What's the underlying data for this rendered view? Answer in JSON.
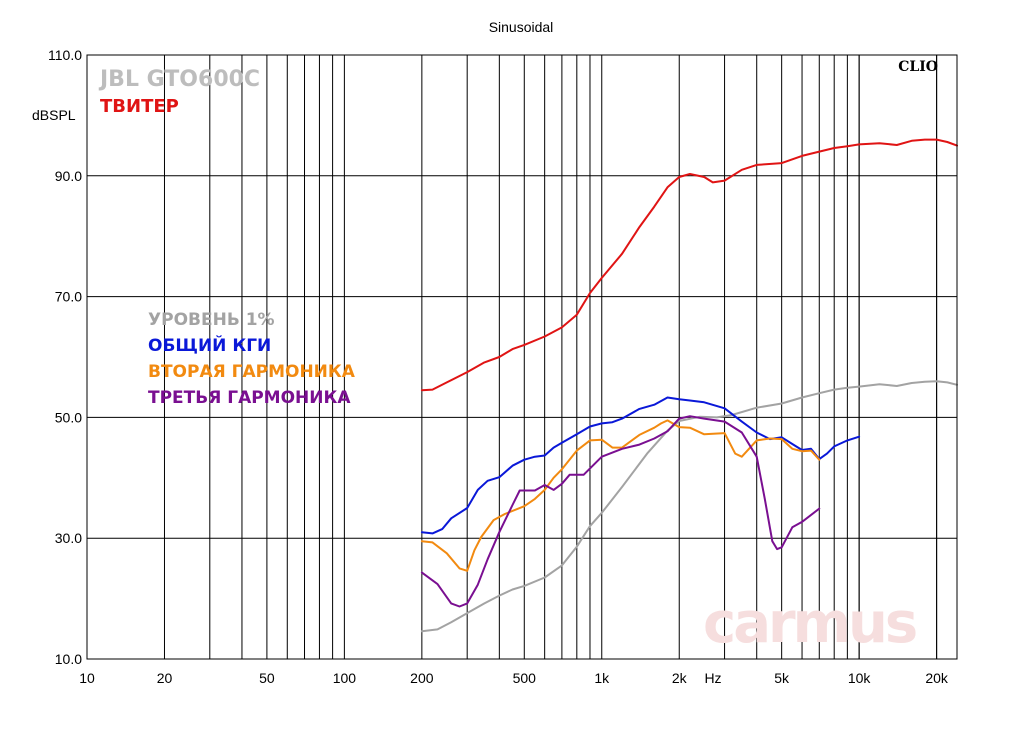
{
  "chart_data": {
    "type": "line",
    "title": "Sinusoidal",
    "brand": "CLIO",
    "ylabel": "dBSPL",
    "xlabel": "Hz",
    "x_scale": "log",
    "xlim": [
      10,
      24000
    ],
    "ylim": [
      10,
      110
    ],
    "grid": true,
    "x_ticks": [
      {
        "value": 10,
        "label": "10"
      },
      {
        "value": 20,
        "label": "20"
      },
      {
        "value": 50,
        "label": "50"
      },
      {
        "value": 100,
        "label": "100"
      },
      {
        "value": 200,
        "label": "200"
      },
      {
        "value": 500,
        "label": "500"
      },
      {
        "value": 1000,
        "label": "1k"
      },
      {
        "value": 2000,
        "label": "2k"
      },
      {
        "value": 5000,
        "label": "5k"
      },
      {
        "value": 10000,
        "label": "10k"
      },
      {
        "value": 20000,
        "label": "20k"
      }
    ],
    "y_ticks": [
      {
        "value": 10,
        "label": "10.0"
      },
      {
        "value": 30,
        "label": "30.0"
      },
      {
        "value": 50,
        "label": "50.0"
      },
      {
        "value": 70,
        "label": "70.0"
      },
      {
        "value": 90,
        "label": "90.0"
      },
      {
        "value": 110,
        "label": "110.0"
      }
    ],
    "annotations": {
      "model": "JBL GTO600C",
      "component": "ТВИТЕР",
      "watermark": "carmus"
    },
    "legend": [
      {
        "label": "УРОВЕНЬ 1%",
        "color": "#a3a3a3"
      },
      {
        "label": "ОБЩИЙ КГИ",
        "color": "#0a18d8"
      },
      {
        "label": "ВТОРАЯ ГАРМОНИКА",
        "color": "#f28a10"
      },
      {
        "label": "ТРЕТЬЯ ГАРМОНИКА",
        "color": "#7a0f91"
      }
    ],
    "series": [
      {
        "name": "ТВИТЕР",
        "color": "#e01414",
        "points": [
          [
            200,
            54.5
          ],
          [
            220,
            54.6
          ],
          [
            250,
            55.8
          ],
          [
            300,
            57.5
          ],
          [
            350,
            59.1
          ],
          [
            400,
            60.0
          ],
          [
            450,
            61.3
          ],
          [
            500,
            62.0
          ],
          [
            600,
            63.4
          ],
          [
            700,
            64.9
          ],
          [
            800,
            67.0
          ],
          [
            900,
            70.6
          ],
          [
            1000,
            73.1
          ],
          [
            1200,
            77.1
          ],
          [
            1400,
            81.5
          ],
          [
            1600,
            84.9
          ],
          [
            1800,
            88.1
          ],
          [
            2000,
            89.8
          ],
          [
            2200,
            90.3
          ],
          [
            2500,
            89.8
          ],
          [
            2700,
            88.9
          ],
          [
            3000,
            89.2
          ],
          [
            3500,
            91.0
          ],
          [
            4000,
            91.8
          ],
          [
            5000,
            92.1
          ],
          [
            6000,
            93.3
          ],
          [
            7000,
            94.0
          ],
          [
            8000,
            94.6
          ],
          [
            9000,
            94.9
          ],
          [
            10000,
            95.2
          ],
          [
            12000,
            95.4
          ],
          [
            14000,
            95.1
          ],
          [
            16000,
            95.8
          ],
          [
            18000,
            96.0
          ],
          [
            20000,
            96.0
          ],
          [
            22000,
            95.6
          ],
          [
            24000,
            95.0
          ]
        ]
      },
      {
        "name": "УРОВЕНЬ 1%",
        "color": "#a3a3a3",
        "points": [
          [
            200,
            14.6
          ],
          [
            230,
            14.9
          ],
          [
            260,
            16.1
          ],
          [
            300,
            17.6
          ],
          [
            350,
            19.2
          ],
          [
            400,
            20.5
          ],
          [
            450,
            21.5
          ],
          [
            500,
            22.1
          ],
          [
            600,
            23.5
          ],
          [
            700,
            25.5
          ],
          [
            800,
            28.6
          ],
          [
            900,
            32.0
          ],
          [
            1000,
            34.2
          ],
          [
            1200,
            38.5
          ],
          [
            1500,
            44.0
          ],
          [
            1800,
            47.8
          ],
          [
            2000,
            49.4
          ],
          [
            2400,
            50.1
          ],
          [
            2800,
            50.0
          ],
          [
            3200,
            50.4
          ],
          [
            4000,
            51.6
          ],
          [
            5000,
            52.3
          ],
          [
            6000,
            53.3
          ],
          [
            7000,
            54.0
          ],
          [
            8000,
            54.6
          ],
          [
            9000,
            54.9
          ],
          [
            10000,
            55.1
          ],
          [
            12000,
            55.5
          ],
          [
            14000,
            55.2
          ],
          [
            16000,
            55.7
          ],
          [
            18000,
            55.9
          ],
          [
            20000,
            56.0
          ],
          [
            22000,
            55.8
          ],
          [
            24000,
            55.4
          ]
        ]
      },
      {
        "name": "ОБЩИЙ КГИ",
        "color": "#0a18d8",
        "points": [
          [
            200,
            31.0
          ],
          [
            220,
            30.8
          ],
          [
            240,
            31.5
          ],
          [
            260,
            33.3
          ],
          [
            300,
            35.0
          ],
          [
            330,
            38.0
          ],
          [
            360,
            39.5
          ],
          [
            400,
            40.1
          ],
          [
            450,
            42.0
          ],
          [
            500,
            43.0
          ],
          [
            550,
            43.5
          ],
          [
            600,
            43.7
          ],
          [
            650,
            45.0
          ],
          [
            700,
            45.8
          ],
          [
            800,
            47.2
          ],
          [
            900,
            48.5
          ],
          [
            1000,
            49.0
          ],
          [
            1100,
            49.2
          ],
          [
            1200,
            49.8
          ],
          [
            1400,
            51.4
          ],
          [
            1600,
            52.1
          ],
          [
            1800,
            53.3
          ],
          [
            2000,
            53.0
          ],
          [
            2200,
            52.8
          ],
          [
            2500,
            52.5
          ],
          [
            3000,
            51.5
          ],
          [
            3500,
            49.3
          ],
          [
            4000,
            47.5
          ],
          [
            4500,
            46.4
          ],
          [
            5000,
            46.7
          ],
          [
            5500,
            45.6
          ],
          [
            6000,
            44.6
          ],
          [
            6500,
            44.8
          ],
          [
            7000,
            43.1
          ],
          [
            7500,
            44.0
          ],
          [
            8000,
            45.2
          ],
          [
            9000,
            46.2
          ],
          [
            10000,
            46.8
          ]
        ]
      },
      {
        "name": "ВТОРАЯ ГАРМОНИКА",
        "color": "#f28a10",
        "points": [
          [
            200,
            29.5
          ],
          [
            220,
            29.3
          ],
          [
            250,
            27.5
          ],
          [
            280,
            25.0
          ],
          [
            300,
            24.6
          ],
          [
            320,
            28.0
          ],
          [
            340,
            30.2
          ],
          [
            380,
            33.0
          ],
          [
            420,
            34.0
          ],
          [
            500,
            35.3
          ],
          [
            550,
            36.5
          ],
          [
            600,
            38.0
          ],
          [
            650,
            40.0
          ],
          [
            700,
            41.4
          ],
          [
            800,
            44.5
          ],
          [
            900,
            46.2
          ],
          [
            1000,
            46.3
          ],
          [
            1100,
            45.0
          ],
          [
            1200,
            45.0
          ],
          [
            1400,
            47.1
          ],
          [
            1600,
            48.3
          ],
          [
            1700,
            49.0
          ],
          [
            1800,
            49.5
          ],
          [
            2000,
            48.4
          ],
          [
            2200,
            48.3
          ],
          [
            2500,
            47.2
          ],
          [
            3000,
            47.4
          ],
          [
            3300,
            44.0
          ],
          [
            3500,
            43.5
          ],
          [
            4000,
            46.2
          ],
          [
            4500,
            46.5
          ],
          [
            5000,
            46.4
          ],
          [
            5500,
            44.8
          ],
          [
            6000,
            44.4
          ],
          [
            6500,
            44.5
          ],
          [
            7000,
            43.0
          ]
        ]
      },
      {
        "name": "ТРЕТЬЯ ГАРМОНИКА",
        "color": "#7a0f91",
        "points": [
          [
            200,
            24.3
          ],
          [
            230,
            22.4
          ],
          [
            260,
            19.2
          ],
          [
            280,
            18.7
          ],
          [
            300,
            19.2
          ],
          [
            330,
            22.3
          ],
          [
            360,
            26.5
          ],
          [
            400,
            31.0
          ],
          [
            450,
            35.5
          ],
          [
            480,
            37.9
          ],
          [
            550,
            37.9
          ],
          [
            600,
            38.8
          ],
          [
            650,
            38.0
          ],
          [
            700,
            39.0
          ],
          [
            750,
            40.5
          ],
          [
            850,
            40.5
          ],
          [
            1000,
            43.5
          ],
          [
            1200,
            44.8
          ],
          [
            1400,
            45.5
          ],
          [
            1600,
            46.5
          ],
          [
            1800,
            47.7
          ],
          [
            2000,
            49.8
          ],
          [
            2200,
            50.2
          ],
          [
            2500,
            49.8
          ],
          [
            3000,
            49.3
          ],
          [
            3500,
            47.5
          ],
          [
            4000,
            43.5
          ],
          [
            4300,
            36.5
          ],
          [
            4600,
            29.5
          ],
          [
            4800,
            28.2
          ],
          [
            5000,
            28.5
          ],
          [
            5500,
            31.8
          ],
          [
            6000,
            32.7
          ],
          [
            7000,
            34.9
          ]
        ]
      }
    ]
  }
}
